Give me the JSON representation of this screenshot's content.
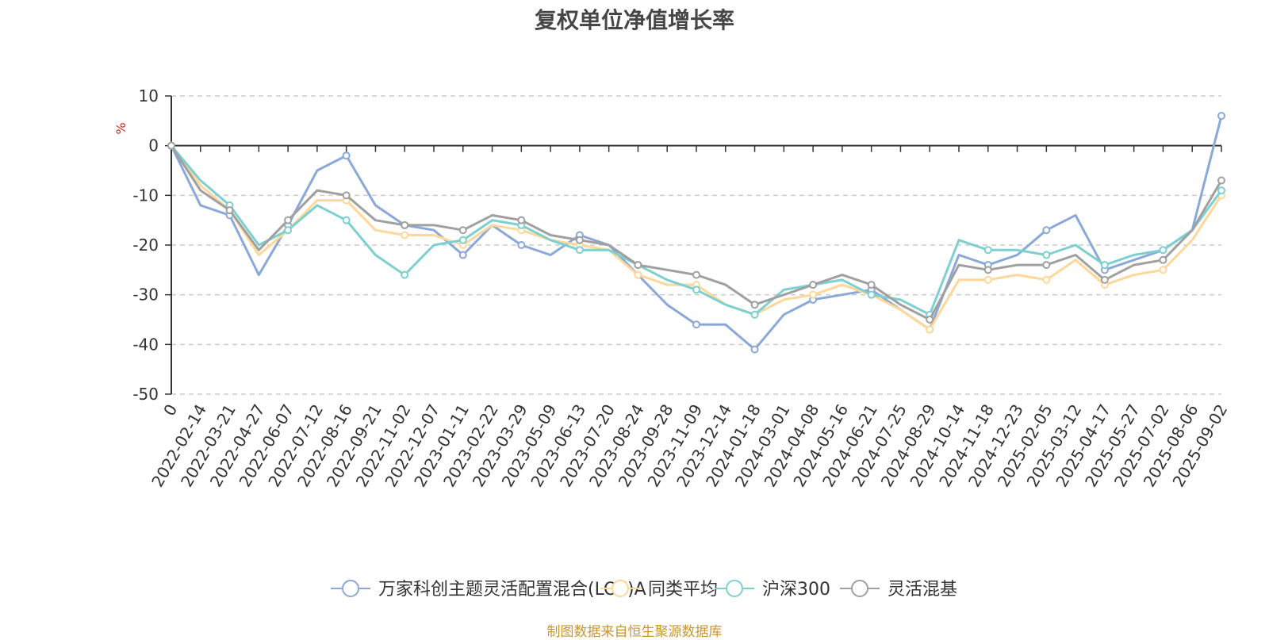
{
  "chart_data": {
    "type": "line",
    "title": "复权单位净值增长率",
    "ylabel": "%",
    "ylim": [
      -50,
      10
    ],
    "yticks": [
      10,
      0,
      -10,
      -20,
      -30,
      -40,
      -50
    ],
    "grid": true,
    "legend_position": "bottom",
    "x": [
      "0",
      "2022-02-14",
      "2022-03-21",
      "2022-04-27",
      "2022-06-07",
      "2022-07-12",
      "2022-08-16",
      "2022-09-21",
      "2022-11-02",
      "2022-12-07",
      "2023-01-11",
      "2023-02-22",
      "2023-03-29",
      "2023-05-09",
      "2023-06-13",
      "2023-07-20",
      "2023-08-24",
      "2023-09-28",
      "2023-11-09",
      "2023-12-14",
      "2024-01-18",
      "2024-03-01",
      "2024-04-08",
      "2024-05-16",
      "2024-06-21",
      "2024-07-25",
      "2024-08-29",
      "2024-10-14",
      "2024-11-18",
      "2024-12-23",
      "2025-02-05",
      "2025-03-12",
      "2025-04-17",
      "2025-05-27",
      "2025-07-02",
      "2025-08-06",
      "2025-09-02"
    ],
    "series": [
      {
        "name": "万家科创主题灵活配置混合(LOF)A",
        "color": "#8aa8d8",
        "values": [
          0,
          -12,
          -14,
          -26,
          -16,
          -5,
          -2,
          -12,
          -16,
          -17,
          -22,
          -16,
          -20,
          -22,
          -18,
          -20,
          -26,
          -32,
          -36,
          -36,
          -41,
          -34,
          -31,
          -30,
          -29,
          -33,
          -37,
          -22,
          -24,
          -22,
          -17,
          -14,
          -25,
          -23,
          -21,
          -17,
          6
        ]
      },
      {
        "name": "同类平均",
        "color": "#fdd89a",
        "values": [
          0,
          -8,
          -13,
          -22,
          -17,
          -11,
          -11,
          -17,
          -18,
          -18,
          -20,
          -16,
          -17,
          -19,
          -20,
          -21,
          -26,
          -28,
          -28,
          -32,
          -34,
          -31,
          -30,
          -28,
          -30,
          -33,
          -37,
          -27,
          -27,
          -26,
          -27,
          -23,
          -28,
          -26,
          -25,
          -19,
          -10
        ]
      },
      {
        "name": "沪深300",
        "color": "#7ed0d0",
        "values": [
          0,
          -7,
          -12,
          -20,
          -17,
          -12,
          -15,
          -22,
          -26,
          -20,
          -19,
          -15,
          -16,
          -19,
          -21,
          -21,
          -24,
          -27,
          -29,
          -32,
          -34,
          -29,
          -28,
          -27,
          -30,
          -31,
          -34,
          -19,
          -21,
          -21,
          -22,
          -20,
          -24,
          -22,
          -21,
          -17,
          -9
        ]
      },
      {
        "name": "灵活混基",
        "color": "#a0a0a0",
        "values": [
          0,
          -9,
          -13,
          -21,
          -15,
          -9,
          -10,
          -15,
          -16,
          -16,
          -17,
          -14,
          -15,
          -18,
          -19,
          -20,
          -24,
          -25,
          -26,
          -28,
          -32,
          -30,
          -28,
          -26,
          -28,
          -32,
          -35,
          -24,
          -25,
          -24,
          -24,
          -22,
          -27,
          -24,
          -23,
          -17,
          -7
        ]
      }
    ]
  },
  "footer": "制图数据来自恒生聚源数据库"
}
